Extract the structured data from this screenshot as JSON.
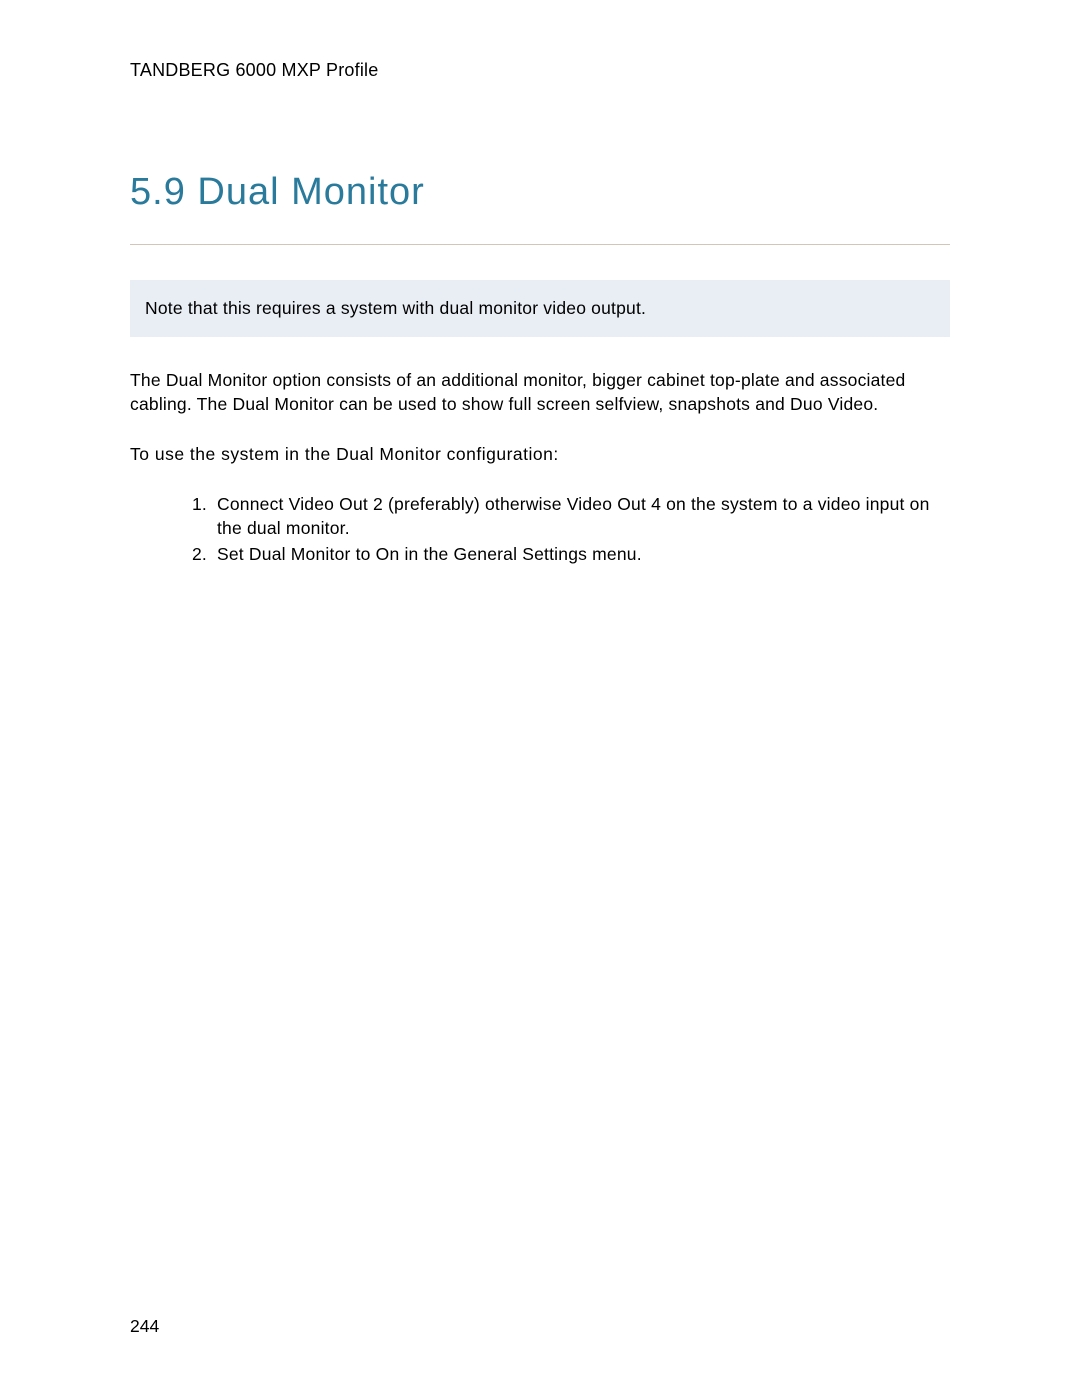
{
  "header": {
    "text": "TANDBERG 6000 MXP Profile"
  },
  "section": {
    "title": "5.9 Dual Monitor"
  },
  "note": {
    "text": "Note that this requires a system with dual monitor video output."
  },
  "body": {
    "paragraph": "The Dual Monitor option consists of an additional monitor, bigger cabinet top-plate and associated cabling. The Dual Monitor can be used to show full screen selfview, snapshots and Duo Video."
  },
  "subheading": {
    "text": "To use the system in the Dual Monitor configuration:"
  },
  "list": {
    "items": [
      "Connect Video Out 2 (preferably) otherwise Video Out 4 on the system to a video input on the dual monitor.",
      "Set Dual Monitor to On in the General Settings menu."
    ]
  },
  "footer": {
    "page_number": "244"
  },
  "colors": {
    "title_color": "#2a7a9c",
    "note_bg": "#e8eef4",
    "hr_color": "#d4c5b9",
    "text_color": "#000000",
    "page_bg": "#ffffff"
  },
  "typography": {
    "header_fontsize": 18,
    "title_fontsize": 38,
    "body_fontsize": 17.5,
    "font_family": "Arial"
  }
}
